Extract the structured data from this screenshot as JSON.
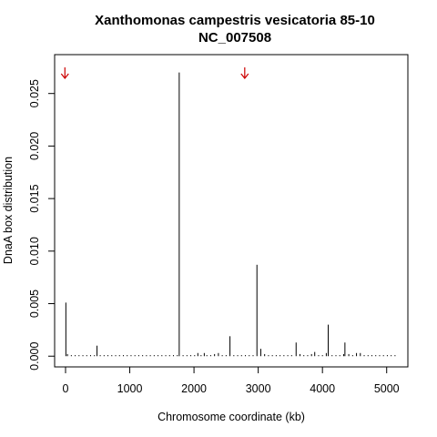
{
  "chart_data": {
    "type": "bar",
    "title": "Xanthomonas campestris vesicatoria 85-10",
    "subtitle": "NC_007508",
    "xlabel": "Chromosome coordinate (kb)",
    "ylabel": "DnaA box distribution",
    "xlim": [
      -170,
      5330
    ],
    "ylim": [
      -0.00102,
      0.0287
    ],
    "x_ticks": [
      0,
      1000,
      2000,
      3000,
      4000,
      5000
    ],
    "y_ticks": [
      0.0,
      0.005,
      0.01,
      0.015,
      0.02,
      0.025
    ],
    "y_tick_labels": [
      "0.000",
      "0.005",
      "0.010",
      "0.015",
      "0.020",
      "0.025"
    ],
    "x_tick_labels": [
      "0",
      "1000",
      "2000",
      "3000",
      "4000",
      "5000"
    ],
    "grid": false,
    "legend": "none",
    "series": [
      {
        "x": [
          5,
          30,
          90,
          150,
          210,
          270,
          330,
          390,
          450,
          490,
          540,
          600,
          660,
          720,
          780,
          840,
          900,
          960,
          1020,
          1080,
          1140,
          1200,
          1260,
          1320,
          1380,
          1440,
          1500,
          1560,
          1620,
          1680,
          1740,
          1770,
          1830,
          1890,
          1950,
          2010,
          2060,
          2110,
          2160,
          2200,
          2260,
          2320,
          2380,
          2440,
          2500,
          2560,
          2620,
          2680,
          2740,
          2800,
          2860,
          2920,
          2980,
          3040,
          3100,
          3160,
          3220,
          3280,
          3340,
          3400,
          3460,
          3520,
          3590,
          3650,
          3710,
          3770,
          3830,
          3880,
          3940,
          4000,
          4060,
          4090,
          4150,
          4210,
          4270,
          4330,
          4350,
          4410,
          4470,
          4530,
          4590,
          4650,
          4710,
          4770,
          4830,
          4890,
          4950,
          5010,
          5070,
          5130
        ],
        "values": [
          0.0051,
          0.0002,
          0.0001,
          0.0001,
          0.0001,
          0.0001,
          0.0001,
          0.0001,
          0.0001,
          0.001,
          0.0001,
          0.0001,
          0.0001,
          0.0001,
          0.0001,
          0.0001,
          0.0001,
          0.0001,
          0.0001,
          0.0001,
          0.0001,
          0.0001,
          0.0001,
          0.0001,
          0.0001,
          0.0001,
          0.0001,
          0.0001,
          0.0001,
          0.0001,
          0.0001,
          0.027,
          0.0001,
          0.0001,
          0.0001,
          0.0001,
          0.0003,
          0.0001,
          0.0003,
          0.0001,
          0.0001,
          0.0002,
          0.0003,
          0.0001,
          0.0001,
          0.0019,
          0.0001,
          0.0001,
          0.0001,
          0.0001,
          0.0001,
          0.0001,
          0.0087,
          0.0007,
          0.0002,
          0.0001,
          0.0001,
          0.0001,
          0.0001,
          0.0001,
          0.0001,
          0.0001,
          0.0013,
          0.0002,
          0.0001,
          0.0001,
          0.0002,
          0.0004,
          0.0001,
          0.0001,
          0.0003,
          0.003,
          0.0001,
          0.0001,
          0.0001,
          0.0002,
          0.0013,
          0.0002,
          0.0001,
          0.0003,
          0.0003,
          0.0001,
          0.0001,
          0.0001,
          0.0001,
          0.0001,
          0.0001,
          0.0001,
          0.0001,
          0.0001
        ]
      }
    ],
    "annotations": [
      {
        "type": "arrow-down",
        "x": -10,
        "color": "#cc0000"
      },
      {
        "type": "arrow-down",
        "x": 2790,
        "color": "#cc0000"
      }
    ]
  }
}
